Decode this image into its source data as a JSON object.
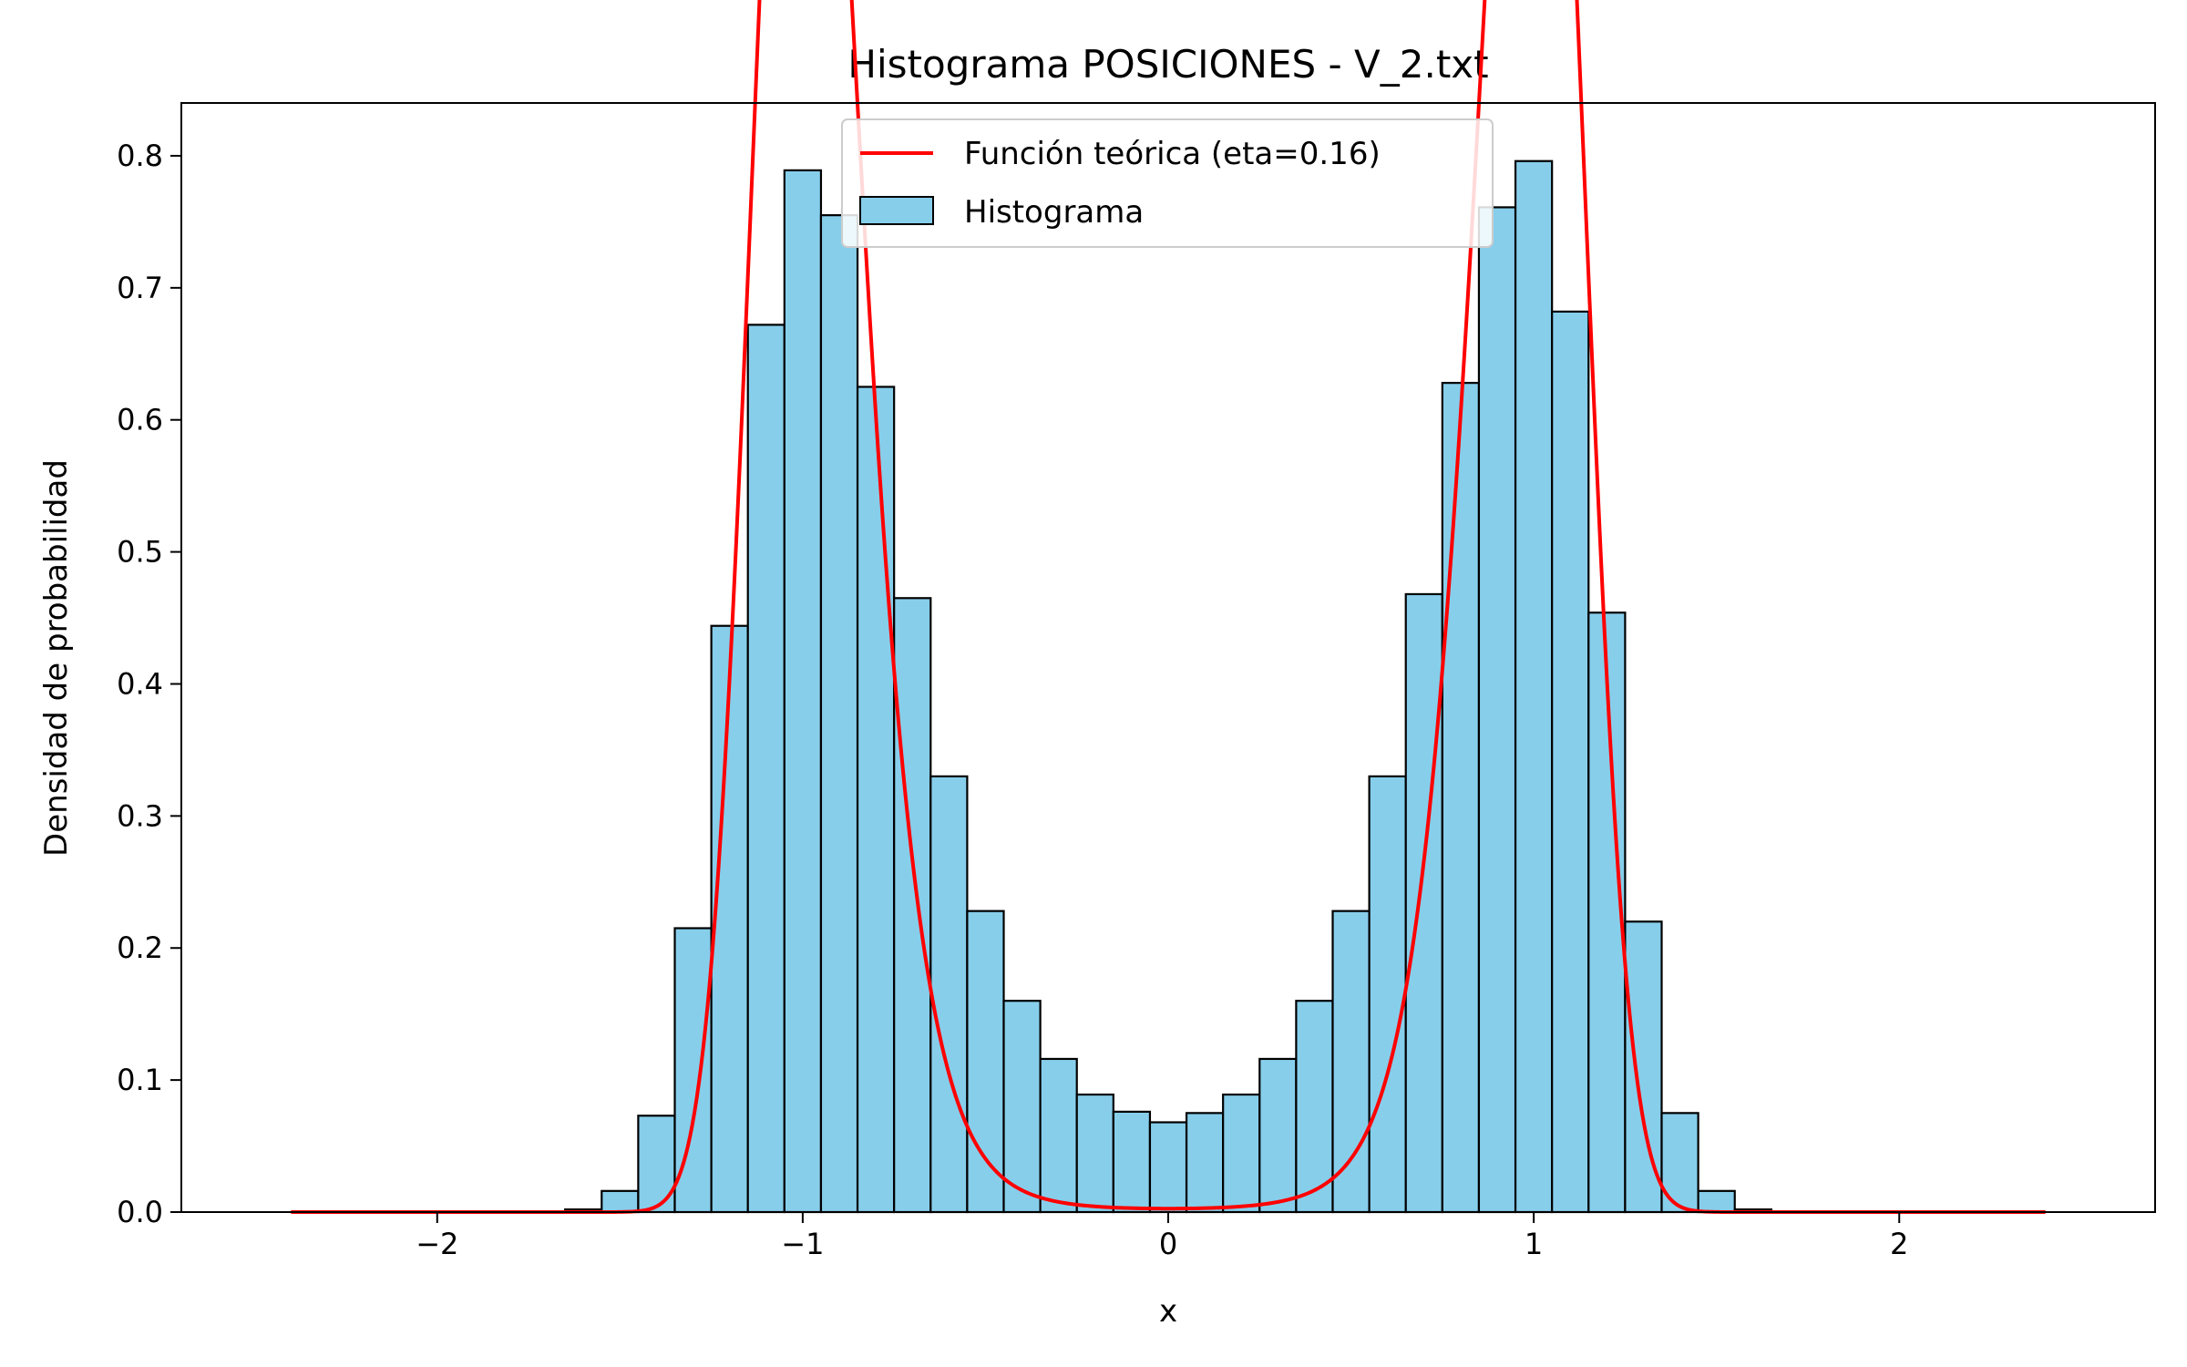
{
  "chart_data": {
    "type": "bar",
    "title": "Histograma POSICIONES - V_2.txt",
    "xlabel": "x",
    "ylabel": "Densidad de probabilidad",
    "xlim": [
      -2.7,
      2.7
    ],
    "ylim": [
      0.0,
      0.84
    ],
    "x_ticks": [
      -2,
      -1,
      0,
      1,
      2
    ],
    "x_tick_labels": [
      "−2",
      "−1",
      "0",
      "1",
      "2"
    ],
    "y_ticks": [
      0.0,
      0.1,
      0.2,
      0.3,
      0.4,
      0.5,
      0.6,
      0.7,
      0.8
    ],
    "y_tick_labels": [
      "0.0",
      "0.1",
      "0.2",
      "0.3",
      "0.4",
      "0.5",
      "0.6",
      "0.7",
      "0.8"
    ],
    "grid": false,
    "legend_position": "top-center",
    "histogram": {
      "name": "Histograma",
      "color": "#87CEEB",
      "edge_color": "#000000",
      "bin_width": 0.1,
      "bin_centers": [
        -1.6,
        -1.5,
        -1.4,
        -1.3,
        -1.2,
        -1.1,
        -1.0,
        -0.9,
        -0.8,
        -0.7,
        -0.6,
        -0.5,
        -0.4,
        -0.3,
        -0.2,
        -0.1,
        0.0,
        0.1,
        0.2,
        0.3,
        0.4,
        0.5,
        0.6,
        0.7,
        0.8,
        0.9,
        1.0,
        1.1,
        1.2,
        1.3,
        1.4,
        1.5,
        1.6
      ],
      "values": [
        0.002,
        0.016,
        0.073,
        0.215,
        0.444,
        0.672,
        0.789,
        0.755,
        0.625,
        0.465,
        0.33,
        0.228,
        0.16,
        0.116,
        0.089,
        0.076,
        0.068,
        0.075,
        0.089,
        0.116,
        0.16,
        0.228,
        0.33,
        0.468,
        0.628,
        0.761,
        0.796,
        0.682,
        0.454,
        0.22,
        0.075,
        0.016,
        0.002
      ]
    },
    "theory": {
      "name": "Función teórica (eta=0.16)",
      "color": "#FF0000",
      "eta": 0.16,
      "x_range": [
        -2.4,
        2.4
      ]
    }
  }
}
